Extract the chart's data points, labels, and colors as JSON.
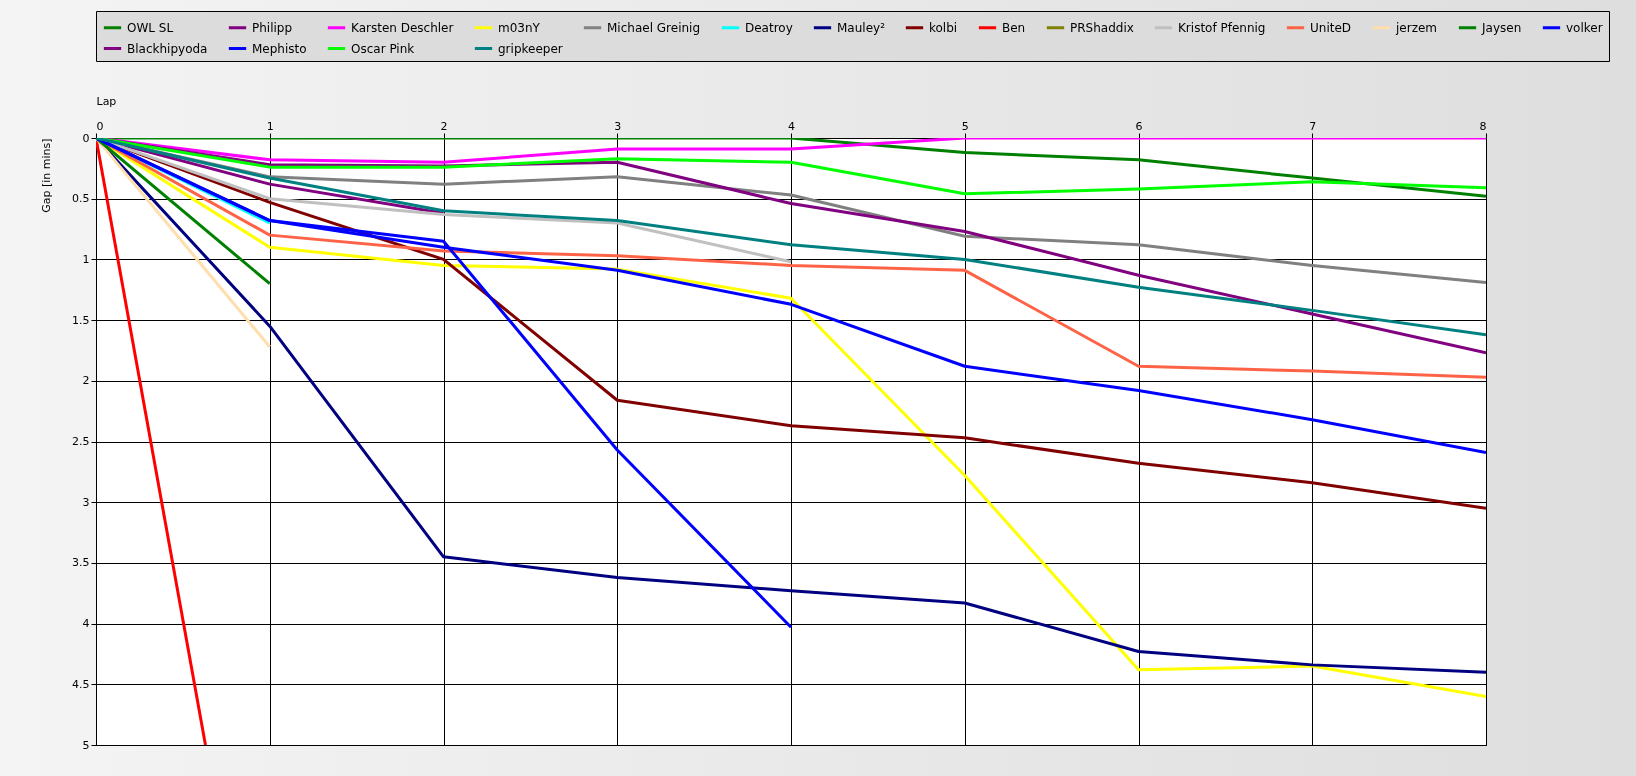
{
  "chart_data": {
    "type": "line",
    "xlabel": "Lap",
    "ylabel": "Gap [in mins]",
    "x": [
      0,
      1,
      2,
      3,
      4,
      5,
      6,
      7,
      8
    ],
    "xlim": [
      0,
      8
    ],
    "xticks": [
      0,
      1,
      2,
      3,
      4,
      5,
      6,
      7,
      8
    ],
    "ylim": [
      5,
      0
    ],
    "yticks": [
      0,
      0.5,
      1,
      1.5,
      2,
      2.5,
      3,
      3.5,
      4,
      4.5,
      5
    ],
    "grid": true,
    "legend": "top",
    "marker": "none",
    "line_style": "solid",
    "series": [
      {
        "name": "OWL SL",
        "color": "#008000",
        "values": [
          0,
          0,
          0,
          0,
          0,
          0.12,
          0.18,
          0.33,
          0.48
        ]
      },
      {
        "name": "Philipp",
        "color": "#800080",
        "values": [
          0,
          0.38,
          0.62,
          null,
          null,
          null,
          null,
          null,
          null
        ]
      },
      {
        "name": "Karsten Deschler",
        "color": "#ff00ff",
        "values": [
          0,
          0.18,
          0.2,
          0.09,
          0.09,
          0,
          0,
          0,
          0
        ]
      },
      {
        "name": "m03nY",
        "color": "#ffff00",
        "values": [
          0,
          0.9,
          1.05,
          1.08,
          1.32,
          2.78,
          4.38,
          4.35,
          4.6
        ]
      },
      {
        "name": "Michael Greinig",
        "color": "#808080",
        "values": [
          0,
          0.32,
          0.38,
          0.32,
          0.47,
          0.81,
          0.88,
          1.05,
          1.19
        ]
      },
      {
        "name": "Deatroy",
        "color": "#00ffff",
        "values": [
          0,
          0.7,
          null,
          null,
          null,
          null,
          null,
          null,
          null
        ]
      },
      {
        "name": "Mauley²",
        "color": "#000080",
        "values": [
          0,
          1.55,
          3.45,
          3.62,
          3.73,
          3.83,
          4.23,
          4.34,
          4.4
        ]
      },
      {
        "name": "kolbi",
        "color": "#800000",
        "values": [
          0,
          0.53,
          1.0,
          2.16,
          2.37,
          2.47,
          2.68,
          2.84,
          3.05
        ]
      },
      {
        "name": "Ben",
        "color": "#ff0000",
        "x": [
          0,
          0.63
        ],
        "values": [
          0,
          5
        ]
      },
      {
        "name": "PRShaddix",
        "color": "#808000",
        "values": [
          null,
          null,
          null,
          null,
          null,
          null,
          null,
          null,
          null
        ]
      },
      {
        "name": "Kristof Pfennig",
        "color": "#c0c0c0",
        "values": [
          0,
          0.5,
          0.63,
          0.7,
          1.02,
          null,
          null,
          null,
          null
        ]
      },
      {
        "name": "UniteD",
        "color": "#ff6347",
        "values": [
          0,
          0.8,
          0.93,
          0.97,
          1.05,
          1.09,
          1.88,
          1.92,
          1.97
        ]
      },
      {
        "name": "jerzem",
        "color": "#ffdead",
        "values": [
          0,
          1.72,
          null,
          null,
          null,
          null,
          null,
          null,
          null
        ]
      },
      {
        "name": "Jaysen",
        "color": "#008000",
        "values": [
          0,
          1.2,
          null,
          null,
          null,
          null,
          null,
          null,
          null
        ]
      },
      {
        "name": "volker",
        "color": "#0000ff",
        "values": [
          0,
          0.68,
          0.85,
          2.57,
          4.03,
          null,
          null,
          null,
          null
        ]
      },
      {
        "name": "Blackhipyoda",
        "color": "#800080",
        "values": [
          0,
          0.22,
          0.23,
          0.2,
          0.54,
          0.77,
          1.13,
          1.45,
          1.77
        ]
      },
      {
        "name": "Mephisto",
        "color": "#0000ff",
        "values": [
          0,
          0.68,
          0.9,
          1.09,
          1.37,
          1.88,
          2.08,
          2.32,
          2.59
        ]
      },
      {
        "name": "Oscar Pink",
        "color": "#00ff00",
        "values": [
          0,
          0.24,
          0.24,
          0.17,
          0.2,
          0.46,
          0.42,
          0.36,
          0.41
        ]
      },
      {
        "name": "gripkeeper",
        "color": "#008080",
        "values": [
          0,
          0.33,
          0.6,
          0.68,
          0.88,
          1.0,
          1.23,
          1.42,
          1.62
        ]
      }
    ]
  }
}
